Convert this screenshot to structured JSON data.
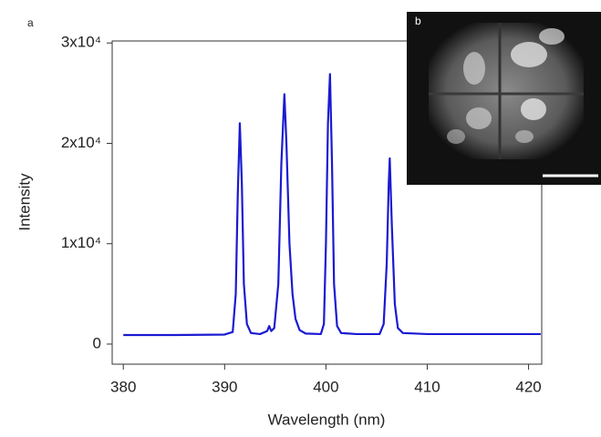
{
  "chart_data": {
    "type": "line",
    "annotations": [
      "a",
      "b"
    ],
    "x_label": "Wavelength (nm)",
    "y_label": "Intensity",
    "x": [
      380,
      385,
      390,
      390.8,
      391.1,
      391.3,
      391.5,
      391.7,
      391.9,
      392.2,
      392.6,
      393.5,
      394.2,
      394.4,
      394.6,
      394.9,
      395.3,
      395.6,
      395.9,
      396.1,
      396.4,
      396.7,
      397.0,
      397.4,
      398,
      399.5,
      399.8,
      400.0,
      400.2,
      400.4,
      400.6,
      400.8,
      401.1,
      401.5,
      403,
      405.3,
      405.7,
      406.0,
      406.2,
      406.3,
      406.5,
      406.8,
      407.1,
      407.6,
      410,
      415,
      421.2
    ],
    "series": [
      {
        "color": "#1a1ad2",
        "values": [
          900,
          900,
          950,
          1200,
          5000,
          15000,
          22000,
          16000,
          6000,
          2000,
          1100,
          1000,
          1300,
          1800,
          1300,
          1600,
          6000,
          18000,
          24900,
          20000,
          10000,
          5000,
          2500,
          1400,
          1050,
          1000,
          2000,
          10000,
          22000,
          26900,
          18000,
          6000,
          1800,
          1100,
          1000,
          1000,
          2000,
          8000,
          16000,
          18500,
          12000,
          4000,
          1600,
          1100,
          1000,
          1000,
          1000
        ]
      }
    ],
    "xlim": [
      378.9,
      421.3
    ],
    "ylim": [
      -2000,
      30200
    ],
    "xticks": [
      380,
      390,
      400,
      410,
      420
    ],
    "yticks": [
      0,
      {
        "value": 10000,
        "label": "1x10⁴"
      },
      {
        "value": 20000,
        "label": "2x10⁴"
      },
      {
        "value": 30000,
        "label": "3x10⁴"
      }
    ]
  }
}
